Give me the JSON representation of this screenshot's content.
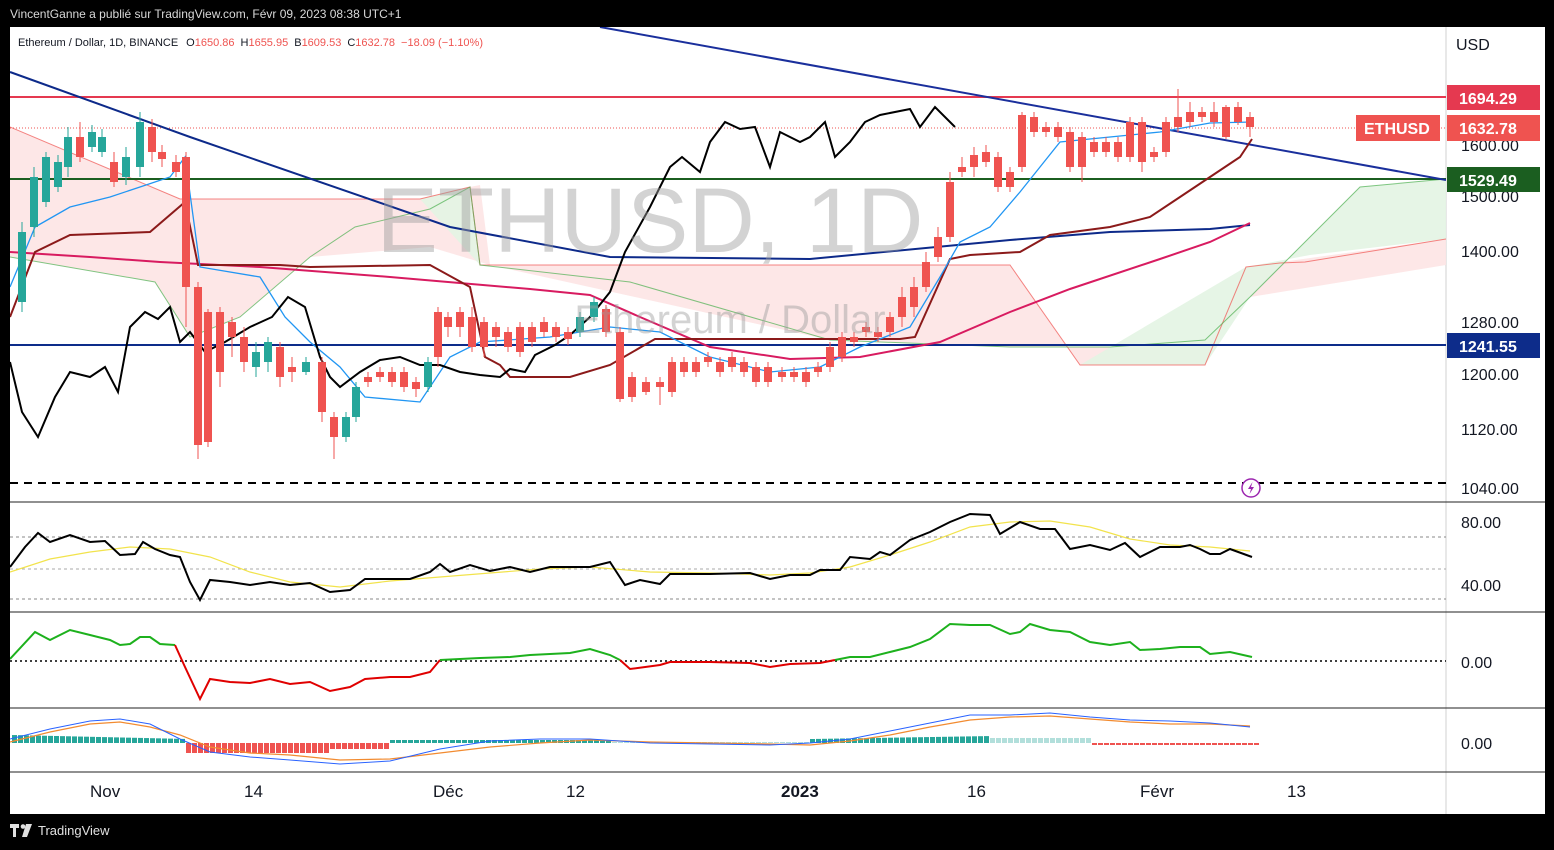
{
  "header": {
    "credit": "VincentGanne a publié sur TradingView.com, Févr 09, 2023 08:38 UTC+1",
    "symbol_line": "Ethereum / Dollar, 1D, BINANCE",
    "ohlc": {
      "o_label": "O",
      "o": "1650.86",
      "h_label": "H",
      "h": "1655.95",
      "l_label": "B",
      "l": "1609.53",
      "c_label": "C",
      "c": "1632.78",
      "change": "−18.09 (−1.10%)"
    }
  },
  "watermark": {
    "big": "ETHUSD, 1D",
    "small": "Ethereum / Dollar"
  },
  "axis": {
    "currency": "USD",
    "price_labels": [
      "1600.00",
      "1500.00",
      "1400.00",
      "1280.00",
      "1200.00",
      "1120.00",
      "1040.00"
    ],
    "rsi_labels": [
      "80.00",
      "40.00"
    ],
    "osc_label": "0.00",
    "macd_label": "0.00",
    "time_labels": [
      "Nov",
      "14",
      "Déc",
      "12",
      "2023",
      "16",
      "Févr",
      "13"
    ]
  },
  "tags": {
    "resistance": "1694.29",
    "symbol": "ETHUSD",
    "last": "1632.78",
    "support1": "1529.49",
    "support2": "1241.55"
  },
  "colors": {
    "up": "#26a69a",
    "down": "#ef5350",
    "resistance_line": "#e53950",
    "support_green": "#1b5e20",
    "support_navy": "#0d2c8a",
    "trendline": "#1a2f9c",
    "tenkan": "#2196f3",
    "kijun": "#8b1a1a",
    "ma200": "#d81b60",
    "ma_navy": "#0d2a8a"
  },
  "footer": {
    "brand": "TradingView"
  },
  "chart_data": {
    "type": "candlestick",
    "title": "Ethereum / Dollar, 1D, BINANCE",
    "ylabel": "USD",
    "ylim": [
      1020,
      1760
    ],
    "x_ticks": [
      "Nov",
      "14",
      "Déc",
      "12",
      "2023",
      "16",
      "Févr",
      "13"
    ],
    "horizontal_levels": [
      1694.29,
      1529.49,
      1241.55,
      1045
    ],
    "last_close": 1632.78
  }
}
